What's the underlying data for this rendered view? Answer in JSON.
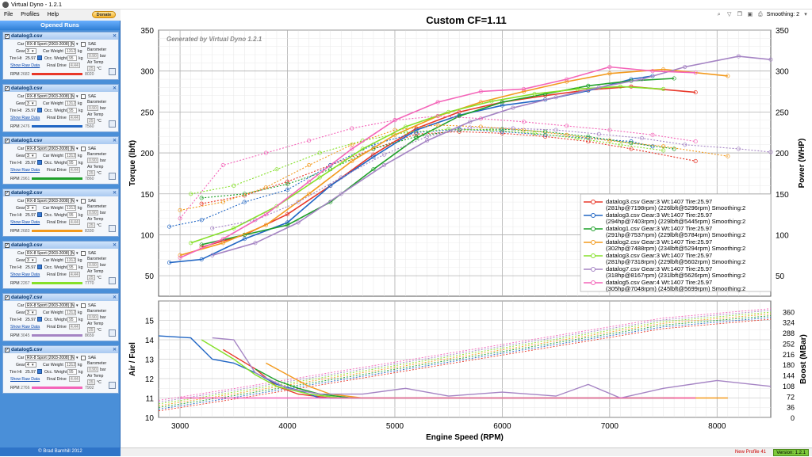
{
  "window": {
    "title": "Virtual Dyno - 1.2.1"
  },
  "menu": [
    "File",
    "Profiles",
    "Help"
  ],
  "donate_label": "Donate",
  "sidebar": {
    "header": "Opened Runs",
    "footer": "© Brad Barnhill 2012",
    "labels": {
      "car": "Car",
      "gear": "Gear",
      "car_weight": "Car Weight",
      "kg": "kg",
      "sae": "SAE",
      "barometer": "Barometer",
      "bar": "bar",
      "tire_ht": "Tire Ht",
      "occ_weight": "Occ. Weight",
      "air_temp": "Air Temp",
      "show_raw": "Show Raw Data",
      "final_drive": "Final Drive",
      "degc": "°C",
      "rpm": "RPM",
      "car_value": "RX-8 Sport (2003-2008) [Ma",
      "tire_value": "25.97",
      "car_weight_value": "1312",
      "occ_weight_value": "95",
      "baro_value": "0.90",
      "final_value": "4.44",
      "temp_value": "25"
    },
    "runs": [
      {
        "name": "datalog3.csv",
        "gear": "3",
        "rpm_start": "2682",
        "rpm_end": "8020",
        "color": "#e8382a"
      },
      {
        "name": "datalog3.csv",
        "gear": "3",
        "rpm_start": "2476",
        "rpm_end": "7560",
        "color": "#2166c4"
      },
      {
        "name": "datalog1.csv",
        "gear": "3",
        "rpm_start": "2961",
        "rpm_end": "7860",
        "color": "#1fa02a"
      },
      {
        "name": "datalog2.csv",
        "gear": "3",
        "rpm_start": "2683",
        "rpm_end": "8330",
        "color": "#f39a1d"
      },
      {
        "name": "datalog3.csv",
        "gear": "3",
        "rpm_start": "2267",
        "rpm_end": "7770",
        "color": "#86e02a"
      },
      {
        "name": "datalog7.csv",
        "gear": "3",
        "rpm_start": "3045",
        "rpm_end": "8659",
        "color": "#a584c4"
      },
      {
        "name": "datalog5.csv",
        "gear": "4",
        "rpm_start": "2766",
        "rpm_end": "7902",
        "color": "#f465b9"
      }
    ]
  },
  "toolbar": {
    "smoothing_label": "Smoothing: 2"
  },
  "status": {
    "profile": "New Profile 41",
    "version": "Version: 1.2.1"
  },
  "chart_data": [
    {
      "type": "line",
      "title": "Custom CF=1.11",
      "watermark": "Generated by Virtual Dyno 1.2.1",
      "ylabel": "Torque (lbft)",
      "y2label": "Power (WHP)",
      "ylim": [
        25,
        350
      ],
      "xlim": [
        2800,
        8500
      ],
      "yticks": [
        50,
        100,
        150,
        200,
        250,
        300,
        350
      ],
      "y2ticks": [
        50,
        100,
        150,
        200,
        250,
        300,
        350
      ],
      "grid": true,
      "legend_position": "bottom-right",
      "series": [
        {
          "name": "datalog3.csv Gear:3 Wt:1407 Tire:25.97",
          "detail": "(281hp@7198rpm) (226lbft@5296rpm) Smoothing:2",
          "color": "#e8382a",
          "power": {
            "x": [
              3200,
              3600,
              4000,
              4400,
              4800,
              5200,
              5600,
              6000,
              6400,
              6800,
              7200,
              7800
            ],
            "y": [
              85,
              100,
              125,
              160,
              198,
              230,
              250,
              262,
              270,
              277,
              281,
              274
            ]
          },
          "torque": {
            "x": [
              3200,
              3600,
              4000,
              4400,
              4800,
              5200,
              5600,
              6000,
              6400,
              6800,
              7200,
              7800
            ],
            "y": [
              138,
              148,
              165,
              185,
              205,
              223,
              226,
              224,
              220,
              214,
              205,
              190
            ]
          }
        },
        {
          "name": "datalog3.csv Gear:3 Wt:1407 Tire:25.97",
          "detail": "(294hp@7403rpm) (229lbft@5445rpm) Smoothing:2",
          "color": "#2166c4",
          "power": {
            "x": [
              2900,
              3200,
              3600,
              4000,
              4400,
              4800,
              5200,
              5600,
              6000,
              6400,
              6800,
              7200,
              7400
            ],
            "y": [
              66,
              70,
              95,
              115,
              160,
              195,
              228,
              246,
              258,
              265,
              276,
              290,
              294
            ]
          },
          "torque": {
            "x": [
              2900,
              3200,
              3600,
              4000,
              4400,
              4800,
              5200,
              5600,
              6000,
              6400,
              6800,
              7200,
              7400
            ],
            "y": [
              110,
              118,
              140,
              155,
              185,
              210,
              225,
              229,
              226,
              222,
              218,
              214,
              208
            ]
          }
        },
        {
          "name": "datalog1.csv Gear:3 Wt:1407 Tire:25.97",
          "detail": "(291hp@7537rpm) (229lbft@5784rpm) Smoothing:2",
          "color": "#1fa02a",
          "power": {
            "x": [
              3200,
              3600,
              4000,
              4400,
              4800,
              5200,
              5600,
              6000,
              6400,
              6800,
              7200,
              7600
            ],
            "y": [
              88,
              100,
              112,
              140,
              180,
              218,
              245,
              262,
              272,
              282,
              288,
              291
            ]
          },
          "torque": {
            "x": [
              3200,
              3600,
              4000,
              4400,
              4800,
              5200,
              5600,
              6000,
              6400,
              6800,
              7200,
              7600
            ],
            "y": [
              145,
              150,
              162,
              180,
              205,
              220,
              228,
              229,
              226,
              220,
              212,
              205
            ]
          }
        },
        {
          "name": "datalog2.csv Gear:3 Wt:1407 Tire:25.97",
          "detail": "(302hp@7488rpm) (234lbft@5294rpm) Smoothing:2",
          "color": "#f39a1d",
          "power": {
            "x": [
              3000,
              3400,
              3800,
              4200,
              4600,
              5000,
              5400,
              5800,
              6200,
              6600,
              7000,
              7500,
              8100
            ],
            "y": [
              75,
              90,
              112,
              150,
              190,
              222,
              245,
              262,
              275,
              287,
              297,
              302,
              294
            ]
          },
          "torque": {
            "x": [
              3000,
              3400,
              3800,
              4200,
              4600,
              5000,
              5400,
              5800,
              6200,
              6600,
              7000,
              7500,
              8100
            ],
            "y": [
              130,
              140,
              158,
              185,
              210,
              228,
              234,
              232,
              228,
              222,
              215,
              208,
              196
            ]
          }
        },
        {
          "name": "datalog3.csv Gear:3 Wt:1407 Tire:25.97",
          "detail": "(281hp@7318rpm) (229lbft@5602rpm) Smoothing:2",
          "color": "#86e02a",
          "power": {
            "x": [
              3100,
              3500,
              3900,
              4300,
              4700,
              5100,
              5500,
              5900,
              6300,
              6700,
              7100,
              7500
            ],
            "y": [
              90,
              108,
              135,
              170,
              205,
              232,
              250,
              263,
              272,
              278,
              281,
              278
            ]
          },
          "torque": {
            "x": [
              3100,
              3500,
              3900,
              4300,
              4700,
              5100,
              5500,
              5900,
              6300,
              6700,
              7100,
              7500
            ],
            "y": [
              150,
              160,
              180,
              200,
              215,
              225,
              229,
              228,
              224,
              218,
              210,
              203
            ]
          }
        },
        {
          "name": "datalog7.csv Gear:3 Wt:1407 Tire:25.97",
          "detail": "(318hp@8167rpm) (231lbft@5626rpm) Smoothing:2",
          "color": "#a584c4",
          "power": {
            "x": [
              3300,
              3700,
              4100,
              4500,
              4900,
              5300,
              5700,
              6100,
              6500,
              6900,
              7300,
              7700,
              8200,
              8500
            ],
            "y": [
              75,
              90,
              115,
              150,
              185,
              215,
              238,
              255,
              268,
              280,
              290,
              305,
              318,
              314
            ]
          },
          "torque": {
            "x": [
              3300,
              3700,
              4100,
              4500,
              4900,
              5300,
              5700,
              6100,
              6500,
              6900,
              7300,
              7700,
              8200,
              8500
            ],
            "y": [
              108,
              118,
              140,
              170,
              198,
              220,
              231,
              230,
              228,
              223,
              218,
              210,
              205,
              201
            ]
          }
        },
        {
          "name": "datalog5.csv Gear:4 Wt:1407 Tire:25.97",
          "detail": "(305hp@7048rpm) (245lbft@5699rpm) Smoothing:2",
          "color": "#f465b9",
          "power": {
            "x": [
              3000,
              3400,
              3800,
              4200,
              4600,
              5000,
              5400,
              5800,
              6200,
              6600,
              7000,
              7400,
              7800
            ],
            "y": [
              72,
              95,
              125,
              165,
              205,
              240,
              262,
              275,
              278,
              290,
              305,
              300,
              298
            ]
          },
          "torque": {
            "x": [
              3000,
              3400,
              3800,
              4200,
              4600,
              5000,
              5400,
              5800,
              6200,
              6600,
              7000,
              7400,
              7800
            ],
            "y": [
              120,
              185,
              200,
              215,
              230,
              240,
              245,
              242,
              238,
              233,
              228,
              222,
              214
            ]
          }
        }
      ]
    },
    {
      "type": "line",
      "xlabel": "Engine Speed (RPM)",
      "ylabel": "Air / Fuel",
      "y2label": "Boost (MBar)",
      "ylim": [
        10,
        16
      ],
      "xlim": [
        2800,
        8500
      ],
      "xticks": [
        3000,
        4000,
        5000,
        6000,
        7000,
        8000
      ],
      "yticks": [
        10,
        11,
        12,
        13,
        14,
        15
      ],
      "y2ticks": [
        0,
        36,
        72,
        108,
        144,
        180,
        216,
        252,
        288,
        324,
        360
      ],
      "grid": true,
      "series": [
        {
          "color": "#e8382a",
          "afr": {
            "x": [
              3400,
              3700,
              3900,
              4100,
              4400,
              5000,
              6000,
              7000,
              7800
            ],
            "y": [
              13.5,
              12.5,
              11.6,
              11.2,
              11,
              11,
              11,
              11,
              11
            ]
          }
        },
        {
          "color": "#2166c4",
          "afr": {
            "x": [
              2800,
              3100,
              3300,
              3500,
              3700,
              3900,
              4100,
              4300,
              4500,
              5000,
              6000,
              7000,
              7400
            ],
            "y": [
              14.2,
              14.1,
              13,
              12.8,
              12.3,
              11.7,
              11.4,
              11,
              11,
              11,
              11,
              11,
              11
            ]
          }
        },
        {
          "color": "#1fa02a",
          "afr": {
            "x": [
              3700,
              3900,
              4100,
              4300,
              4600,
              5000,
              6000,
              7000,
              7600
            ],
            "y": [
              12.5,
              11.9,
              11.5,
              11.2,
              11,
              11,
              11,
              11,
              11
            ]
          }
        },
        {
          "color": "#f39a1d",
          "afr": {
            "x": [
              3800,
              4000,
              4200,
              4400,
              4700,
              5200,
              6000,
              7000,
              8100
            ],
            "y": [
              12.8,
              12.2,
              11.6,
              11.2,
              11,
              11,
              11,
              11,
              11
            ]
          }
        },
        {
          "color": "#86e02a",
          "afr": {
            "x": [
              3200,
              3500,
              3700,
              3900,
              4200,
              4500,
              5000,
              6000,
              7000,
              7500
            ],
            "y": [
              14,
              13,
              12.2,
              11.6,
              11.2,
              11,
              11,
              11,
              11,
              11
            ]
          }
        },
        {
          "color": "#a584c4",
          "afr": {
            "x": [
              3300,
              3500,
              3700,
              4000,
              4300,
              4700,
              5100,
              5500,
              6000,
              6500,
              6800,
              7100,
              7500,
              8000,
              8500
            ],
            "y": [
              14.1,
              14,
              12.3,
              11.5,
              11.2,
              11.2,
              11.5,
              11.1,
              11.3,
              11.1,
              11.7,
              11,
              11.5,
              11.9,
              11.6
            ]
          }
        },
        {
          "color": "#f465b9",
          "afr": {
            "x": [
              3000,
              4000,
              5000,
              6000,
              7000,
              7800
            ],
            "y": [
              11,
              11,
              11,
              11,
              11,
              11
            ]
          }
        }
      ],
      "boost_trend": {
        "x": [
          2800,
          3500,
          4500,
          5500,
          6500,
          7500,
          8500
        ],
        "y": [
          40,
          80,
          140,
          200,
          260,
          320,
          352
        ]
      }
    }
  ]
}
